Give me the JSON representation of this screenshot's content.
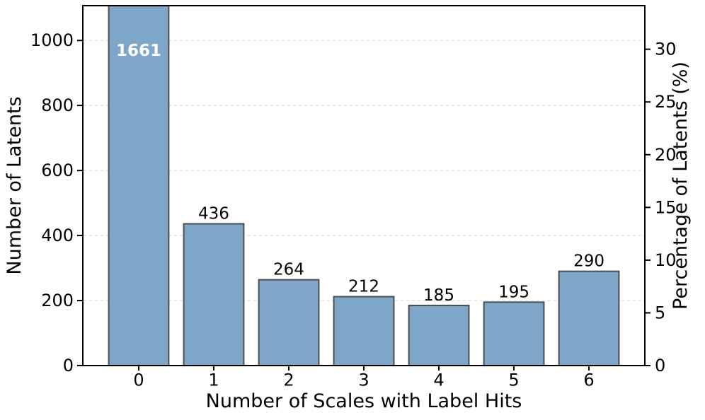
{
  "figure": {
    "background": "#ffffff"
  },
  "chart_data": {
    "type": "bar",
    "title": "",
    "xlabel": "Number of Scales with Label Hits",
    "ylabel_left": "Number of Latents",
    "ylabel_right": "Percentage of Latents (%)",
    "categories": [
      "0",
      "1",
      "2",
      "3",
      "4",
      "5",
      "6"
    ],
    "values": [
      1661,
      436,
      264,
      212,
      185,
      195,
      290
    ],
    "value_labels": [
      "1661",
      "436",
      "264",
      "212",
      "185",
      "195",
      "290"
    ],
    "left_axis": {
      "ticks": [
        0,
        200,
        400,
        600,
        800,
        1000
      ],
      "range": [
        0,
        1107
      ]
    },
    "right_axis": {
      "ticks": [
        0,
        5,
        10,
        15,
        20,
        25,
        30
      ],
      "unit": "%"
    },
    "grid": {
      "axis": "y",
      "style": "dashed",
      "color": "#dcdcdc"
    },
    "bar_width_fraction": 0.8,
    "first_label_inside_bar": true,
    "colors": {
      "bar_fill": "#7da6c9",
      "bar_edge": "#4d4d4d",
      "text": "#000000",
      "spine": "#000000",
      "first_bar_label": "#ffffff"
    }
  }
}
